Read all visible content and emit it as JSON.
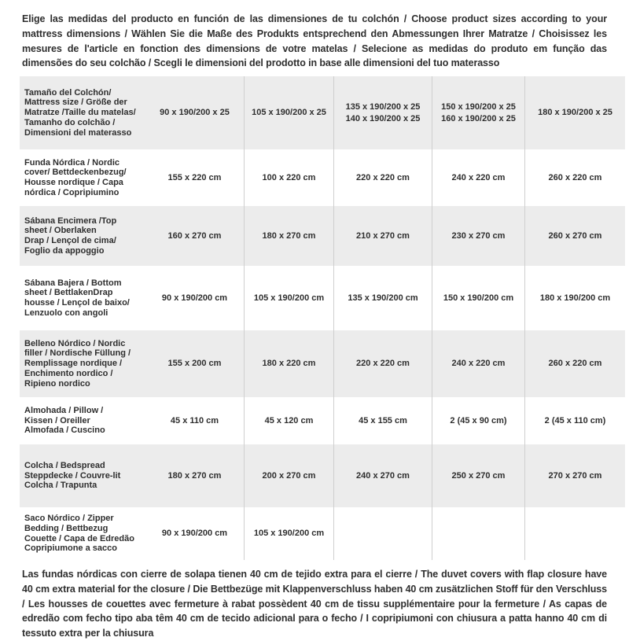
{
  "intro": {
    "text": "Elige las medidas del producto en función de las dimensiones de tu colchón / Choose product sizes according to your mattress dimensions / Wählen Sie die Maße des Produkts entsprechend den Abmessungen Ihrer Matratze / Choisissez les mesures de l'article en fonction des dimensions de votre matelas / Selecione as medidas do produto em função das dimensões do seu colchão / Scegli le dimensioni del prodotto in base alle dimensioni del tuo materasso"
  },
  "table": {
    "rows": [
      {
        "label_lines": [
          "Tamaño del Colchón/",
          "Mattress size / Größe der",
          "Matratze /Taille du matelas/",
          "Tamanho do colchão /",
          "Dimensioni del materasso"
        ],
        "cells": [
          [
            "90 x 190/200 x 25"
          ],
          [
            "105 x 190/200 x 25"
          ],
          [
            "135 x 190/200 x 25",
            "140 x 190/200 x 25"
          ],
          [
            "150 x 190/200 x 25",
            "160 x 190/200 x 25"
          ],
          [
            "180 x 190/200 x 25"
          ]
        ]
      },
      {
        "label_lines": [
          "Funda Nórdica /  Nordic",
          "cover/ Bettdeckenbezug/",
          "Housse nordique / Capa",
          "nórdica / Copripiumino"
        ],
        "cells": [
          [
            "155 x 220 cm"
          ],
          [
            "100 x 220 cm"
          ],
          [
            "220 x 220 cm"
          ],
          [
            "240 x 220 cm"
          ],
          [
            "260 x 220 cm"
          ]
        ]
      },
      {
        "label_lines": [
          "Sábana Encimera /Top",
          "sheet / Oberlaken",
          "Drap / Lençol de cima/",
          "Foglio da appoggio"
        ],
        "cells": [
          [
            "160 x 270 cm"
          ],
          [
            "180 x 270 cm"
          ],
          [
            "210 x 270 cm"
          ],
          [
            "230 x 270 cm"
          ],
          [
            "260 x 270 cm"
          ]
        ]
      },
      {
        "label_lines": [
          "Sábana Bajera / Bottom",
          "sheet / BettlakenDrap",
          "housse / Lençol de baixo/",
          "Lenzuolo con angoli"
        ],
        "cells": [
          [
            "90 x 190/200 cm"
          ],
          [
            "105 x 190/200 cm"
          ],
          [
            "135 x 190/200 cm"
          ],
          [
            "150 x 190/200 cm"
          ],
          [
            "180 x 190/200 cm"
          ]
        ]
      },
      {
        "label_lines": [
          "Belleno Nórdico / Nordic",
          "filler / Nordische Füllung /",
          "Remplissage nordique /",
          "Enchimento nordico /",
          "Ripieno nordico"
        ],
        "cells": [
          [
            "155 x 200 cm"
          ],
          [
            "180 x 220 cm"
          ],
          [
            "220 x 220 cm"
          ],
          [
            "240 x 220 cm"
          ],
          [
            "260 x 220 cm"
          ]
        ]
      },
      {
        "label_lines": [
          "Almohada  / Pillow /",
          "Kissen / Oreiller",
          "Almofada / Cuscino"
        ],
        "cells": [
          [
            "45 x 110 cm"
          ],
          [
            "45 x 120 cm"
          ],
          [
            "45 x 155 cm"
          ],
          [
            "2 (45 x 90 cm)"
          ],
          [
            "2 (45 x 110 cm)"
          ]
        ]
      },
      {
        "label_lines": [
          "Colcha / Bedspread",
          "Steppdecke / Couvre-lit",
          "Colcha / Trapunta"
        ],
        "cells": [
          [
            "180 x 270 cm"
          ],
          [
            "200 x 270 cm"
          ],
          [
            "240 x 270 cm"
          ],
          [
            "250 x 270 cm"
          ],
          [
            "270 x 270 cm"
          ]
        ]
      },
      {
        "label_lines": [
          "Saco Nórdico / Zipper",
          "Bedding / Bettbezug",
          "Couette  / Capa de Edredão",
          "Copripiumone a sacco"
        ],
        "cells": [
          [
            "90 x 190/200 cm"
          ],
          [
            "105 x 190/200 cm"
          ],
          [],
          [],
          []
        ]
      }
    ]
  },
  "footnote": {
    "text": "Las fundas nórdicas con cierre de solapa tienen 40 cm de tejido extra para el cierre / The duvet covers with flap closure have 40 cm extra material for the closure / Die Bettbezüge mit Klappenverschluss haben 40 cm zusätzlichen Stoff für den Verschluss / Les housses de couettes avec fermeture à rabat possèdent 40 cm de tissu supplémentaire pour la fermeture / As capas de edredão com fecho tipo aba têm 40 cm de tecido adicional para o fecho / I copripiumoni con chiusura a patta hanno 40 cm di tessuto extra per la chiusura"
  },
  "colors": {
    "row_stripe": "#ececec",
    "divider": "#cfcfcf",
    "text": "#2e2e2e",
    "background": "#ffffff"
  }
}
